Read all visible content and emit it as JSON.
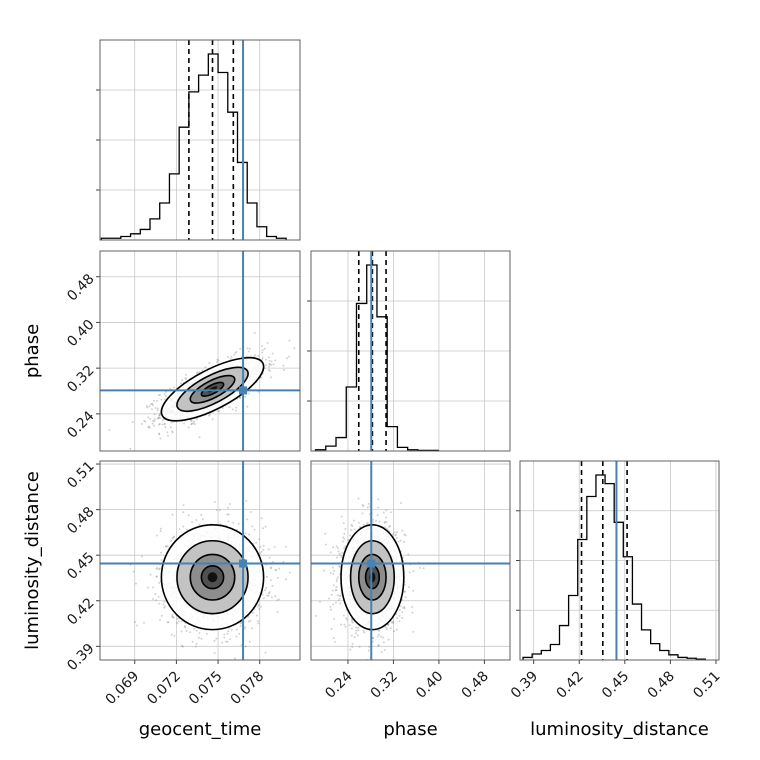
{
  "chart_data": {
    "type": "corner",
    "parameters": [
      "geocent_time",
      "phase",
      "luminosity_distance"
    ],
    "axis_labels": {
      "geocent_time": "geocent_time",
      "phase": "phase",
      "luminosity_distance": "luminosity_distance"
    },
    "ranges": {
      "geocent_time": [
        0.0665,
        0.0809
      ],
      "phase": [
        0.175,
        0.525
      ],
      "luminosity_distance": [
        0.381,
        0.512
      ]
    },
    "ticks": {
      "geocent_time": [
        0.069,
        0.072,
        0.075,
        0.078
      ],
      "phase": [
        0.24,
        0.32,
        0.4,
        0.48
      ],
      "luminosity_distance": [
        0.39,
        0.42,
        0.45,
        0.48,
        0.51
      ]
    },
    "tick_labels": {
      "geocent_time": [
        "0.069",
        "0.072",
        "0.075",
        "0.078"
      ],
      "phase": [
        "0.24",
        "0.32",
        "0.40",
        "0.48"
      ],
      "luminosity_distance": [
        "0.39",
        "0.42",
        "0.45",
        "0.48",
        "0.51"
      ]
    },
    "truths": {
      "geocent_time": 0.0768,
      "phase": 0.281,
      "luminosity_distance": 0.4445
    },
    "quantiles": {
      "geocent_time": [
        0.0729,
        0.0746,
        0.0761
      ],
      "phase": [
        0.259,
        0.283,
        0.307
      ],
      "luminosity_distance": [
        0.4215,
        0.4355,
        0.4515
      ]
    },
    "histograms": {
      "geocent_time": {
        "edges": [
          0.0666,
          0.0673,
          0.068,
          0.0687,
          0.0694,
          0.0701,
          0.0708,
          0.0715,
          0.0722,
          0.0729,
          0.0736,
          0.0743,
          0.075,
          0.0757,
          0.0764,
          0.0771,
          0.0778,
          0.0785,
          0.0792,
          0.0799
        ],
        "counts": [
          2,
          2,
          4,
          7,
          12,
          24,
          42,
          75,
          128,
          168,
          187,
          211,
          190,
          145,
          88,
          42,
          15,
          4,
          2
        ]
      },
      "phase": {
        "edges": [
          0.183,
          0.201,
          0.219,
          0.237,
          0.255,
          0.273,
          0.291,
          0.309,
          0.327,
          0.345,
          0.363,
          0.381,
          0.399
        ],
        "counts": [
          2,
          8,
          22,
          105,
          242,
          305,
          220,
          40,
          6,
          2,
          1,
          1
        ]
      },
      "luminosity_distance": {
        "edges": [
          0.383,
          0.389,
          0.395,
          0.401,
          0.407,
          0.413,
          0.419,
          0.425,
          0.431,
          0.437,
          0.443,
          0.449,
          0.455,
          0.461,
          0.467,
          0.473,
          0.479,
          0.485,
          0.491,
          0.497,
          0.503
        ],
        "counts": [
          3,
          7,
          11,
          18,
          40,
          75,
          140,
          190,
          215,
          205,
          160,
          120,
          65,
          35,
          19,
          11,
          6,
          3,
          2,
          1
        ]
      }
    },
    "colors": {
      "truth": "#4682b4",
      "contour": "#000000",
      "grid": "#c8c8c8",
      "frame": "#606060",
      "points": "#7f7f7f"
    }
  }
}
